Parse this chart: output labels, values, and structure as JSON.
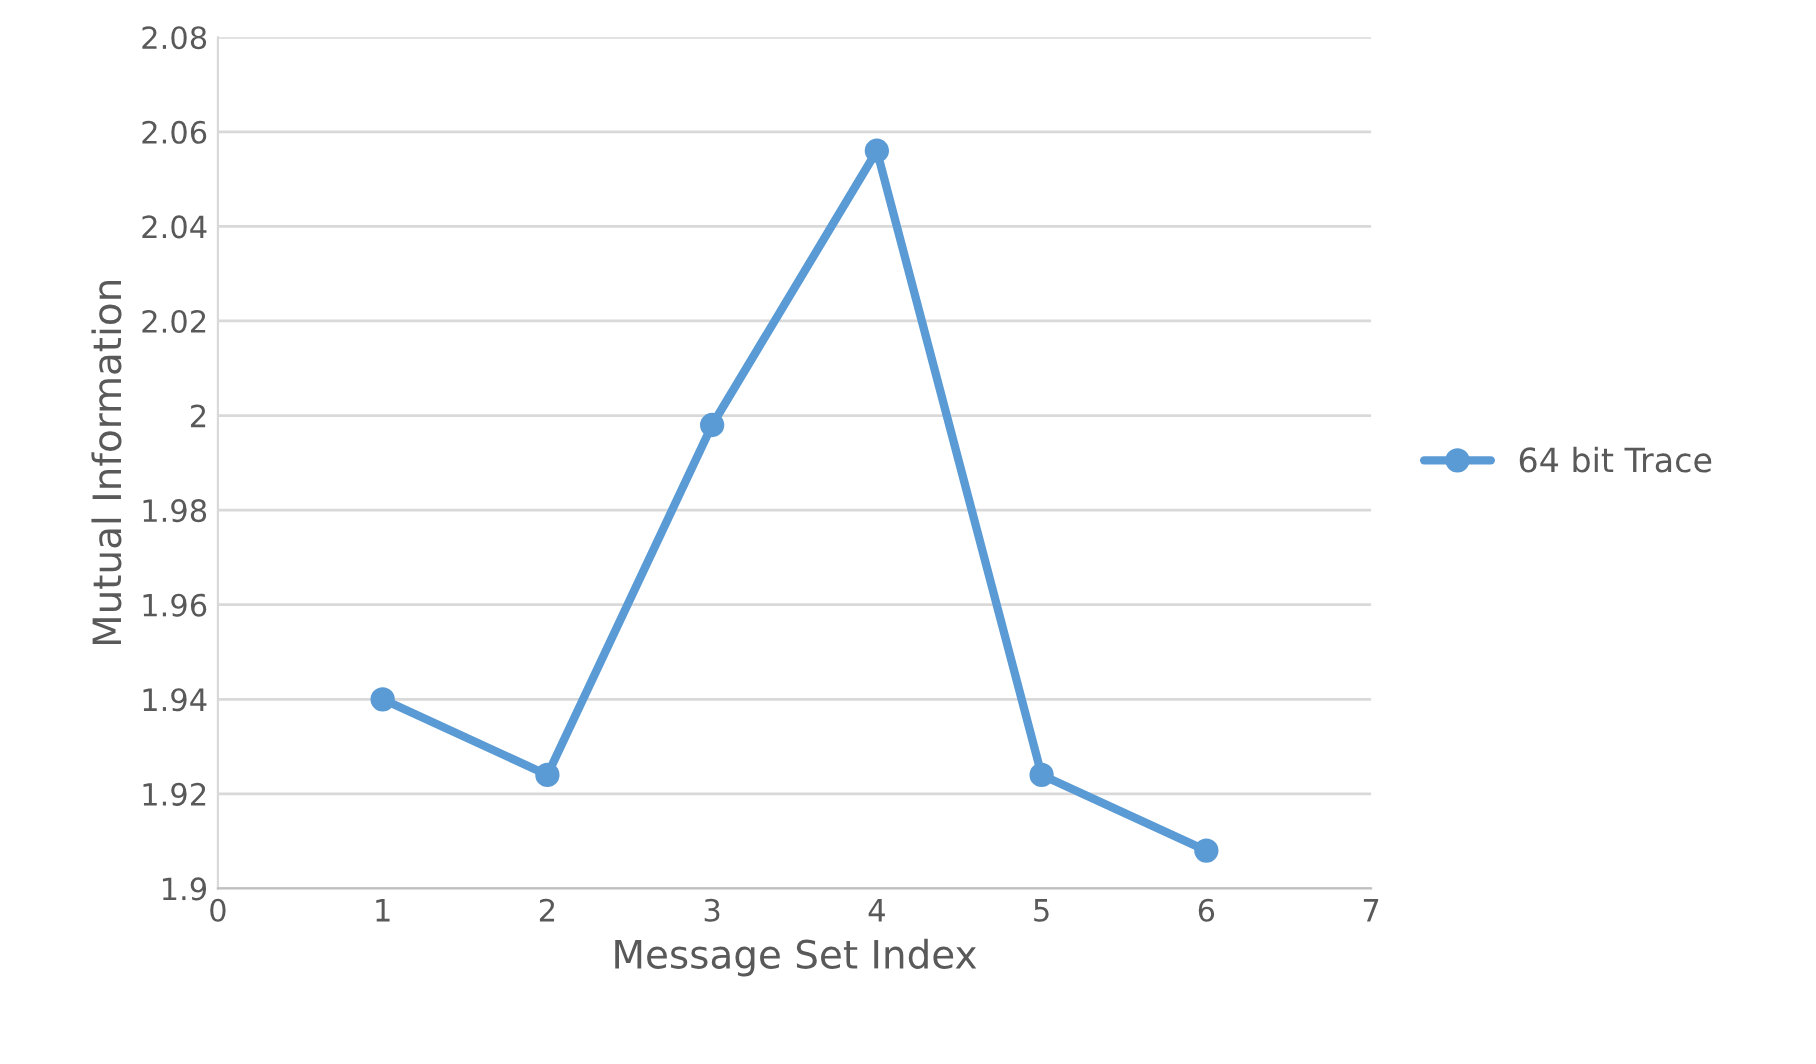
{
  "chart_data": {
    "type": "line",
    "xlabel": "Message Set Index",
    "ylabel": "Mutual Information",
    "x": [
      1,
      2,
      3,
      4,
      5,
      6
    ],
    "series": [
      {
        "name": "64 bit Trace",
        "color": "#5b9bd5",
        "values": [
          1.94,
          1.924,
          1.998,
          2.056,
          1.924,
          1.908
        ]
      }
    ],
    "xlim": [
      0,
      7
    ],
    "xticks": [
      0,
      1,
      2,
      3,
      4,
      5,
      6,
      7
    ],
    "ylim": [
      1.9,
      2.08
    ],
    "yticks": [
      1.9,
      1.92,
      1.94,
      1.96,
      1.98,
      2,
      2.02,
      2.04,
      2.06,
      2.08
    ],
    "grid": "y",
    "legend": "right",
    "marker": "circle",
    "line_style": "solid"
  }
}
